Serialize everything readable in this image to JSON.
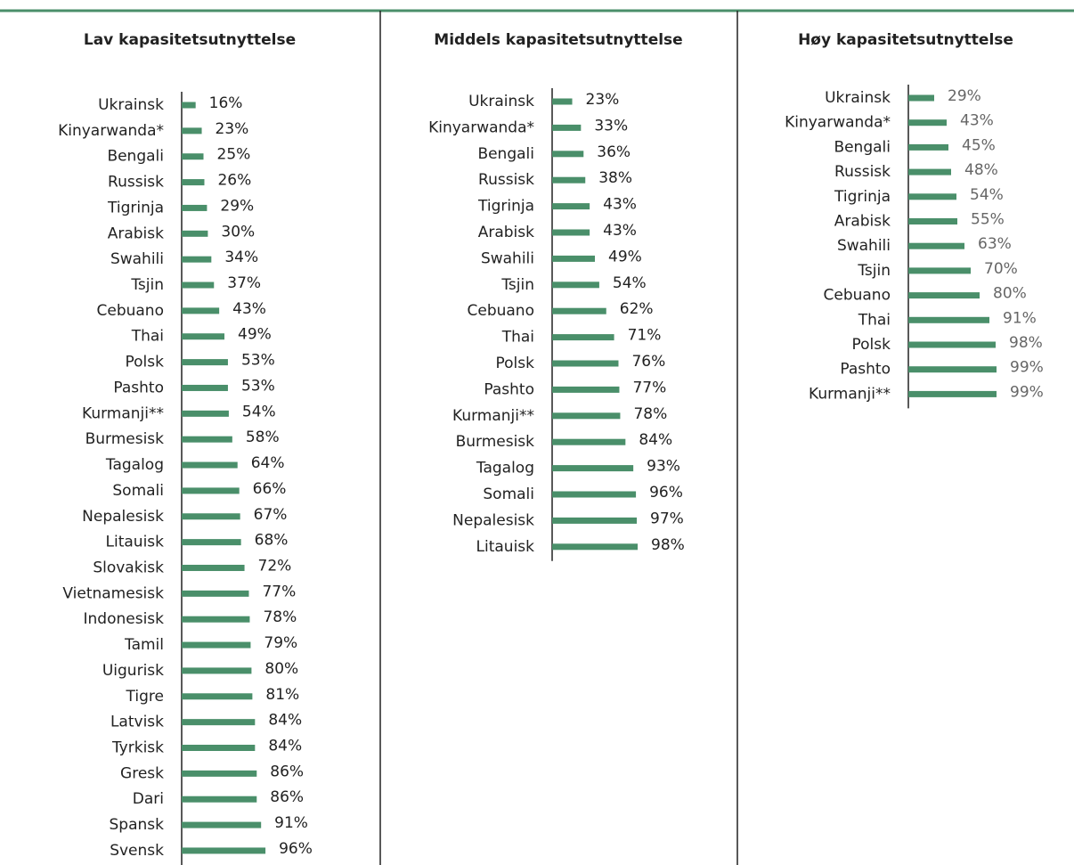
{
  "chart_data": [
    {
      "type": "bar",
      "title": "Lav kapasitetsutnyttelse",
      "color": "#4a8f6a",
      "xlim": [
        0,
        100
      ],
      "categories": [
        "Ukrainsk",
        "Kinyarwanda*",
        "Bengali",
        "Russisk",
        "Tigrinja",
        "Arabisk",
        "Swahili",
        "Tsjin",
        "Cebuano",
        "Thai",
        "Polsk",
        "Pashto",
        "Kurmanji**",
        "Burmesisk",
        "Tagalog",
        "Somali",
        "Nepalesisk",
        "Litauisk",
        "Slovakisk",
        "Vietnamesisk",
        "Indonesisk",
        "Tamil",
        "Uigurisk",
        "Tigre",
        "Latvisk",
        "Tyrkisk",
        "Gresk",
        "Dari",
        "Spansk",
        "Svensk"
      ],
      "values": [
        16,
        23,
        25,
        26,
        29,
        30,
        34,
        37,
        43,
        49,
        53,
        53,
        54,
        58,
        64,
        66,
        67,
        68,
        72,
        77,
        78,
        79,
        80,
        81,
        84,
        84,
        86,
        86,
        91,
        96
      ],
      "value_labels": [
        "16%",
        "23%",
        "25%",
        "26%",
        "29%",
        "30%",
        "34%",
        "37%",
        "43%",
        "49%",
        "53%",
        "53%",
        "54%",
        "58%",
        "64%",
        "66%",
        "67%",
        "68%",
        "72%",
        "77%",
        "78%",
        "79%",
        "80%",
        "81%",
        "84%",
        "84%",
        "86%",
        "86%",
        "91%",
        "96%"
      ]
    },
    {
      "type": "bar",
      "title": "Middels kapasitetsutnyttelse",
      "color": "#4a8f6a",
      "xlim": [
        0,
        100
      ],
      "categories": [
        "Ukrainsk",
        "Kinyarwanda*",
        "Bengali",
        "Russisk",
        "Tigrinja",
        "Arabisk",
        "Swahili",
        "Tsjin",
        "Cebuano",
        "Thai",
        "Polsk",
        "Pashto",
        "Kurmanji**",
        "Burmesisk",
        "Tagalog",
        "Somali",
        "Nepalesisk",
        "Litauisk"
      ],
      "values": [
        23,
        33,
        36,
        38,
        43,
        43,
        49,
        54,
        62,
        71,
        76,
        77,
        78,
        84,
        93,
        96,
        97,
        98
      ],
      "value_labels": [
        "23%",
        "33%",
        "36%",
        "38%",
        "43%",
        "43%",
        "49%",
        "54%",
        "62%",
        "71%",
        "76%",
        "77%",
        "78%",
        "84%",
        "93%",
        "96%",
        "97%",
        "98%"
      ]
    },
    {
      "type": "bar",
      "title": "Høy kapasitetsutnyttelse",
      "color": "#4a8f6a",
      "xlim": [
        0,
        100
      ],
      "categories": [
        "Ukrainsk",
        "Kinyarwanda*",
        "Bengali",
        "Russisk",
        "Tigrinja",
        "Arabisk",
        "Swahili",
        "Tsjin",
        "Cebuano",
        "Thai",
        "Polsk",
        "Pashto",
        "Kurmanji**"
      ],
      "values": [
        29,
        43,
        45,
        48,
        54,
        55,
        63,
        70,
        80,
        91,
        98,
        99,
        99
      ],
      "value_labels": [
        "29%",
        "43%",
        "45%",
        "48%",
        "54%",
        "55%",
        "63%",
        "70%",
        "80%",
        "91%",
        "98%",
        "99%",
        "99%"
      ]
    }
  ]
}
